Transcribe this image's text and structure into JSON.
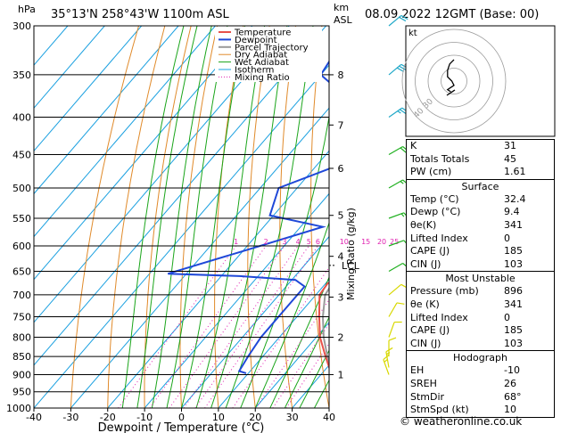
{
  "header": {
    "hpa_label": "hPa",
    "location": "35°13'N  258°43'W  1100m  ASL",
    "km_label": "km",
    "asl_label": "ASL",
    "datetime": "08.09.2022  12GMT  (Base: 00)"
  },
  "legend": [
    "Temperature",
    "Dewpoint",
    "Parcel Trajectory",
    "Dry Adiabat",
    "Wet Adiabat",
    "Isotherm",
    "Mixing Ratio"
  ],
  "colors": {
    "temperature": "#e8514a",
    "dewpoint": "#1f48d8",
    "parcel": "#9a9a9a",
    "dry_adiabat": "#e08a2a",
    "wet_adiabat": "#1aa51a",
    "isotherm": "#1aa0e0",
    "mixing_ratio": "#e020b0"
  },
  "chart_data": {
    "type": "line",
    "xlabel": "Dewpoint / Temperature (°C)",
    "ylabel": "hPa",
    "right_label": "Mixing Ratio (g/kg)",
    "x_ticks": [
      -40,
      -30,
      -20,
      -10,
      0,
      10,
      20,
      30,
      40
    ],
    "pressure_levels": [
      300,
      350,
      400,
      450,
      500,
      550,
      600,
      650,
      700,
      750,
      800,
      850,
      900,
      950,
      1000
    ],
    "km_ticks": [
      {
        "km": "8",
        "p": 350
      },
      {
        "km": "7",
        "p": 410
      },
      {
        "km": "6",
        "p": 470
      },
      {
        "km": "5",
        "p": 545
      },
      {
        "km": "4",
        "p": 620
      },
      {
        "km": "3",
        "p": 705
      },
      {
        "km": "2",
        "p": 800
      },
      {
        "km": "1",
        "p": 900
      }
    ],
    "lcl_label": "LCL",
    "lcl_pressure": 638,
    "mixing_ratio_labels": [
      "1",
      "2",
      "3",
      "4",
      "5",
      "6",
      "10",
      "15",
      "20",
      "25"
    ],
    "mixing_ratio_values": [
      1,
      2,
      3,
      4,
      5,
      6,
      10,
      15,
      20,
      25
    ],
    "series": [
      {
        "name": "Temperature",
        "points": [
          [
            896,
            32.4
          ],
          [
            850,
            27
          ],
          [
            800,
            21
          ],
          [
            750,
            16
          ],
          [
            700,
            11
          ],
          [
            675,
            10.5
          ],
          [
            662,
            13
          ],
          [
            650,
            12.5
          ],
          [
            600,
            9
          ],
          [
            550,
            4
          ],
          [
            500,
            -2
          ],
          [
            450,
            -8
          ],
          [
            400,
            -15
          ],
          [
            350,
            -23
          ],
          [
            300,
            -32
          ]
        ]
      },
      {
        "name": "Dewpoint",
        "points": [
          [
            896,
            9.4
          ],
          [
            890,
            7
          ],
          [
            850,
            6
          ],
          [
            800,
            5
          ],
          [
            750,
            5
          ],
          [
            700,
            5
          ],
          [
            682,
            5
          ],
          [
            668,
            1
          ],
          [
            660,
            -15
          ],
          [
            655,
            -35
          ],
          [
            610,
            -20
          ],
          [
            565,
            -4
          ],
          [
            545,
            -21
          ],
          [
            500,
            -25
          ],
          [
            450,
            -9
          ],
          [
            400,
            -17
          ],
          [
            350,
            -40
          ],
          [
            300,
            -43
          ]
        ]
      },
      {
        "name": "Parcel Trajectory",
        "points": [
          [
            896,
            32.4
          ],
          [
            850,
            27.5
          ],
          [
            800,
            22
          ],
          [
            750,
            17
          ],
          [
            700,
            12.5
          ],
          [
            650,
            11
          ],
          [
            600,
            7.5
          ],
          [
            550,
            3
          ],
          [
            500,
            -2
          ],
          [
            450,
            -8
          ],
          [
            400,
            -15
          ],
          [
            350,
            -23
          ],
          [
            300,
            -33
          ]
        ]
      }
    ]
  },
  "wind_barbs": [
    {
      "p": 300,
      "dir": 230,
      "spd": 20
    },
    {
      "p": 350,
      "dir": 230,
      "spd": 30
    },
    {
      "p": 400,
      "dir": 235,
      "spd": 25
    },
    {
      "p": 450,
      "dir": 240,
      "spd": 20
    },
    {
      "p": 500,
      "dir": 240,
      "spd": 15
    },
    {
      "p": 550,
      "dir": 250,
      "spd": 15
    },
    {
      "p": 600,
      "dir": 250,
      "spd": 10
    },
    {
      "p": 650,
      "dir": 240,
      "spd": 10
    },
    {
      "p": 700,
      "dir": 230,
      "spd": 10
    },
    {
      "p": 750,
      "dir": 210,
      "spd": 10
    },
    {
      "p": 800,
      "dir": 200,
      "spd": 10
    },
    {
      "p": 850,
      "dir": 180,
      "spd": 10
    },
    {
      "p": 880,
      "dir": 170,
      "spd": 15
    },
    {
      "p": 900,
      "dir": 160,
      "spd": 15
    }
  ],
  "hodograph": {
    "label": "kt",
    "ring_labels": [
      "40",
      "30"
    ],
    "points": [
      [
        0,
        -20
      ],
      [
        -4,
        -16
      ],
      [
        -6,
        -10
      ],
      [
        -6,
        -4
      ],
      [
        -2,
        0
      ],
      [
        0,
        4
      ],
      [
        -3,
        6
      ],
      [
        -6,
        8
      ],
      [
        -3,
        10
      ]
    ]
  },
  "table1": [
    {
      "label": "K",
      "value": "31"
    },
    {
      "label": "Totals Totals",
      "value": "45"
    },
    {
      "label": "PW (cm)",
      "value": "1.61"
    }
  ],
  "surface": {
    "title": "Surface",
    "rows": [
      {
        "label": "Temp (°C)",
        "value": "32.4"
      },
      {
        "label": "Dewp (°C)",
        "value": "9.4"
      },
      {
        "label": "θe(K)",
        "value": "341"
      },
      {
        "label": "Lifted Index",
        "value": "0"
      },
      {
        "label": "CAPE (J)",
        "value": "185"
      },
      {
        "label": "CIN (J)",
        "value": "103"
      }
    ]
  },
  "most_unstable": {
    "title": "Most Unstable",
    "rows": [
      {
        "label": "Pressure (mb)",
        "value": "896"
      },
      {
        "label": "θe (K)",
        "value": "341"
      },
      {
        "label": "Lifted Index",
        "value": "0"
      },
      {
        "label": "CAPE (J)",
        "value": "185"
      },
      {
        "label": "CIN (J)",
        "value": "103"
      }
    ]
  },
  "hodograph_table": {
    "title": "Hodograph",
    "rows": [
      {
        "label": "EH",
        "value": "-10"
      },
      {
        "label": "SREH",
        "value": "26"
      },
      {
        "label": "StmDir",
        "value": "68°"
      },
      {
        "label": "StmSpd (kt)",
        "value": "10"
      }
    ]
  },
  "footer": "© weatheronline.co.uk"
}
